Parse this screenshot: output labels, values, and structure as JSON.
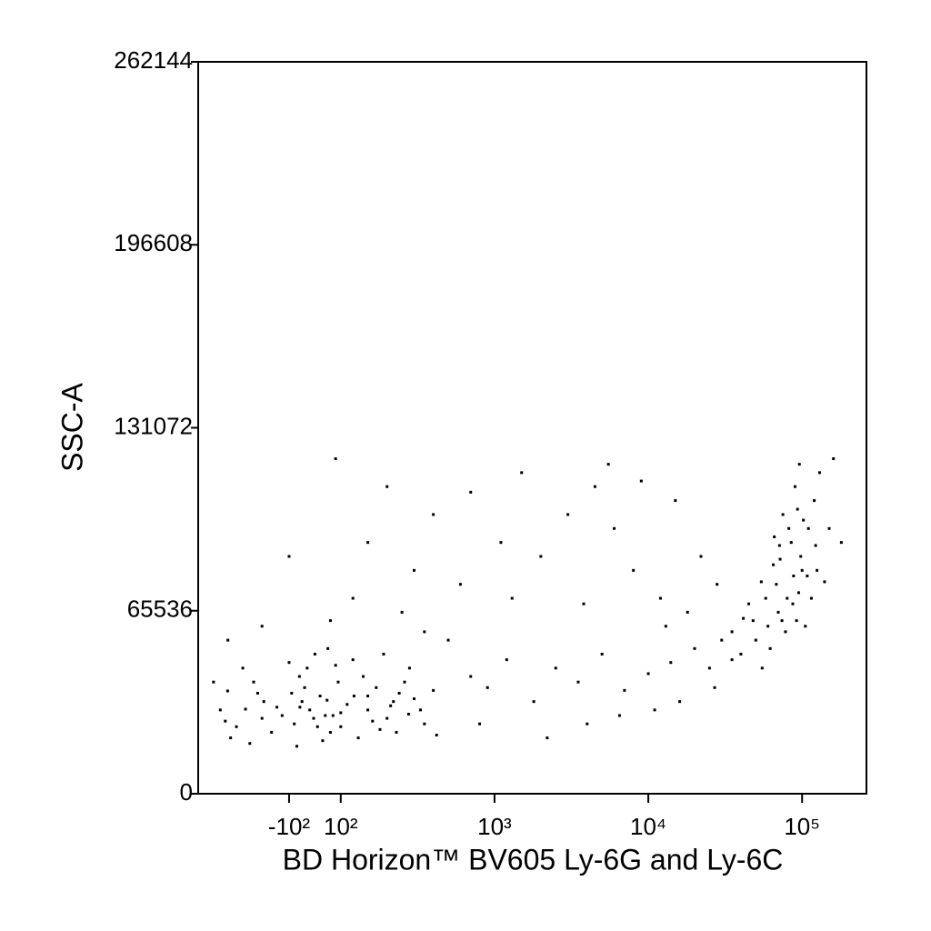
{
  "chart_data": {
    "type": "scatter",
    "x_label": "BD Horizon™ BV605 Ly-6G and Ly-6C",
    "y_label": "SSC-A",
    "xscale": "biexponential",
    "color": "#000000",
    "xlim": [
      -390,
      262144
    ],
    "ylim": [
      0,
      262144
    ],
    "xticks": [
      {
        "value": -100,
        "label": "-10²"
      },
      {
        "value": 100,
        "label": "10²"
      },
      {
        "value": 1000,
        "label": "10³"
      },
      {
        "value": 10000,
        "label": "10⁴"
      },
      {
        "value": 100000,
        "label": "10⁵"
      }
    ],
    "yticks": [
      0,
      65536,
      131072,
      196608,
      262144
    ],
    "x": [
      -251,
      -192,
      -146,
      -111,
      -58,
      -5,
      47,
      100,
      122,
      161,
      211,
      276,
      -220,
      -170,
      -130,
      -90,
      -40,
      10,
      60,
      90,
      140,
      180,
      240,
      300,
      -150,
      -120,
      -80,
      -60,
      -20,
      20,
      70,
      110,
      150,
      200,
      260,
      330,
      -280,
      -200,
      -100,
      -30,
      30,
      80,
      130,
      170,
      230,
      350,
      400,
      -260,
      -180,
      -70,
      0,
      50,
      120,
      190,
      280,
      420,
      -310,
      -240,
      40,
      100,
      -50,
      150,
      -160,
      220,
      500,
      700,
      900,
      1200,
      1800,
      2500,
      3500,
      5000,
      7000,
      10000,
      14000,
      20000,
      25000,
      30000,
      600,
      1100,
      2000,
      3000,
      4500,
      6000,
      8000,
      12000,
      18000,
      22000,
      15000,
      9000,
      150,
      200,
      300,
      400,
      80,
      250,
      120,
      -150,
      -250,
      -100,
      60,
      350,
      1500,
      2200,
      4000,
      6500,
      11000,
      16000,
      800,
      1300,
      27000,
      35000,
      28000,
      13000,
      3800,
      700,
      5500,
      41500,
      54300,
      71300,
      93400,
      122500,
      140000,
      60000,
      80000,
      100000,
      110000,
      90000,
      70000,
      50000,
      45000,
      65000,
      85000,
      95000,
      105000,
      75000,
      120000,
      130000,
      88000,
      78000,
      58000,
      40000,
      35000,
      48000,
      68000,
      98000,
      115000,
      82000,
      92000,
      62000,
      72000,
      102000,
      125000,
      150000,
      160000,
      55000,
      87000,
      180000,
      108000,
      66000,
      96000,
      74000
    ],
    "values": [
      36800,
      30300,
      33000,
      28000,
      31000,
      27000,
      33500,
      29000,
      35000,
      26000,
      31500,
      28500,
      24000,
      40000,
      22000,
      36000,
      38000,
      24000,
      22000,
      40000,
      42000,
      23000,
      36000,
      34000,
      27000,
      31000,
      25000,
      42000,
      30000,
      35000,
      28000,
      32000,
      30000,
      27000,
      40000,
      30000,
      30000,
      45000,
      47000,
      45000,
      19000,
      46000,
      20000,
      38000,
      22000,
      25000,
      37000,
      26000,
      18000,
      17000,
      50000,
      52000,
      48000,
      50000,
      45000,
      21000,
      40000,
      20000,
      28000,
      24000,
      33000,
      35000,
      36000,
      33000,
      55000,
      42000,
      38000,
      48000,
      33000,
      45000,
      40000,
      50000,
      37000,
      43000,
      47000,
      52000,
      45000,
      55000,
      75000,
      90000,
      85000,
      100000,
      110000,
      95000,
      80000,
      70000,
      65000,
      85000,
      105000,
      112000,
      90000,
      110000,
      80000,
      100000,
      120000,
      65000,
      70000,
      60000,
      55000,
      85000,
      62000,
      58000,
      115000,
      20000,
      25000,
      28000,
      30000,
      33000,
      25000,
      70000,
      38000,
      48000,
      75000,
      60000,
      68000,
      108000,
      118000,
      62800,
      75900,
      88900,
      101900,
      88900,
      75900,
      60000,
      70000,
      80000,
      95000,
      110000,
      65000,
      55000,
      68000,
      82000,
      90000,
      72000,
      60000,
      100000,
      105000,
      115000,
      78000,
      58000,
      70000,
      50000,
      58000,
      62000,
      75000,
      85000,
      70000,
      95000,
      62000,
      52000,
      84000,
      98000,
      80000,
      95000,
      120000,
      45000,
      68000,
      90000,
      78000,
      92000,
      118000,
      62000
    ]
  }
}
